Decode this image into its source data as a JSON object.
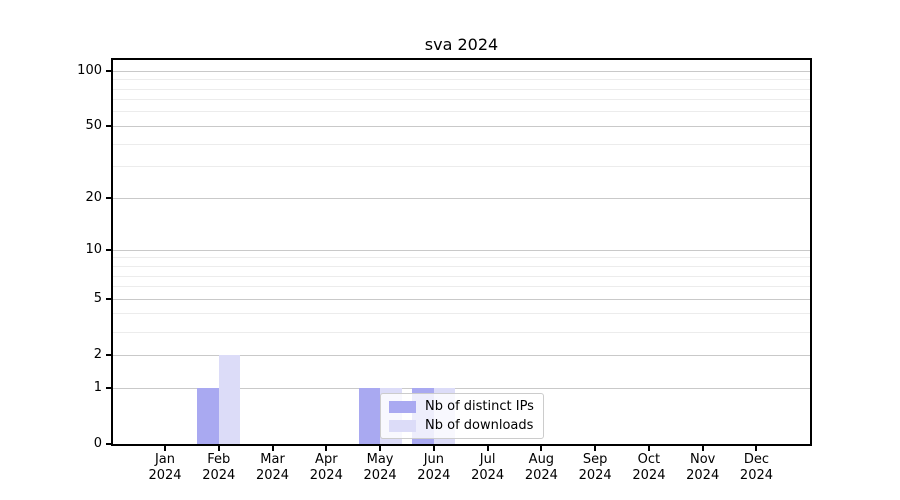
{
  "chart_data": {
    "type": "bar",
    "title": "sva 2024",
    "categories": [
      "Jan 2024",
      "Feb 2024",
      "Mar 2024",
      "Apr 2024",
      "May 2024",
      "Jun 2024",
      "Jul 2024",
      "Aug 2024",
      "Sep 2024",
      "Oct 2024",
      "Nov 2024",
      "Dec 2024"
    ],
    "series": [
      {
        "name": "Nb of distinct IPs",
        "color": "#a9a9f1",
        "values": [
          0,
          1,
          0,
          0,
          1,
          1,
          0,
          0,
          0,
          0,
          0,
          0
        ]
      },
      {
        "name": "Nb of downloads",
        "color": "#dcdcf8",
        "values": [
          0,
          2,
          0,
          0,
          1,
          1,
          0,
          0,
          0,
          0,
          0,
          0
        ]
      }
    ],
    "xlabel": "",
    "ylabel": "",
    "yscale": "log1p",
    "ylim": [
      0,
      115
    ],
    "yticks_major": [
      0,
      1,
      2,
      5,
      10,
      20,
      50,
      100
    ],
    "yticks_minor": [
      3,
      4,
      6,
      7,
      8,
      9,
      30,
      40,
      60,
      70,
      80,
      90
    ],
    "grid": true,
    "legend_position": "lower center-right inside plot"
  },
  "colors": {
    "spine": "#000000",
    "grid_major": "#c9c9c9",
    "grid_minor": "#ececec",
    "legend_border": "#cccccc"
  }
}
